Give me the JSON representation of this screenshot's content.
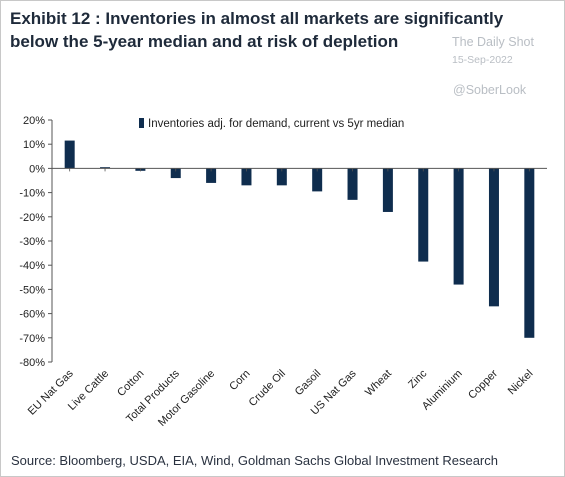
{
  "header": {
    "title": "Exhibit 12 : Inventories in almost all markets are significantly below the 5-year median and at risk of depletion"
  },
  "watermark": {
    "name": "The Daily Shot",
    "date": "15-Sep-2022",
    "handle": "@SoberLook"
  },
  "footer": {
    "source": "Source: Bloomberg, USDA, EIA, Wind, Goldman Sachs Global Investment Research"
  },
  "colors": {
    "bar": "#0f2d4e",
    "axis": "#555555"
  },
  "chart_data": {
    "type": "bar",
    "title": "",
    "xlabel": "",
    "ylabel": "",
    "legend_position": "top",
    "grid": false,
    "ylim": [
      -80,
      20
    ],
    "yticks": [
      20,
      10,
      0,
      -10,
      -20,
      -30,
      -40,
      -50,
      -60,
      -70,
      -80
    ],
    "ytick_labels": [
      "20%",
      "10%",
      "0%",
      "-10%",
      "-20%",
      "-30%",
      "-40%",
      "-50%",
      "-60%",
      "-70%",
      "-80%"
    ],
    "categories": [
      "EU Nat Gas",
      "Live Cattle",
      "Cotton",
      "Total Products",
      "Motor Gasoline",
      "Corn",
      "Crude Oil",
      "Gasoil",
      "US Nat Gas",
      "Wheat",
      "Zinc",
      "Aluminium",
      "Copper",
      "Nickel"
    ],
    "series": [
      {
        "name": "Inventories adj. for demand, current vs 5yr median",
        "values": [
          11.5,
          0.5,
          -1,
          -4,
          -6,
          -7,
          -7,
          -9.5,
          -13,
          -18,
          -38.5,
          -48,
          -57,
          -70
        ]
      }
    ]
  }
}
